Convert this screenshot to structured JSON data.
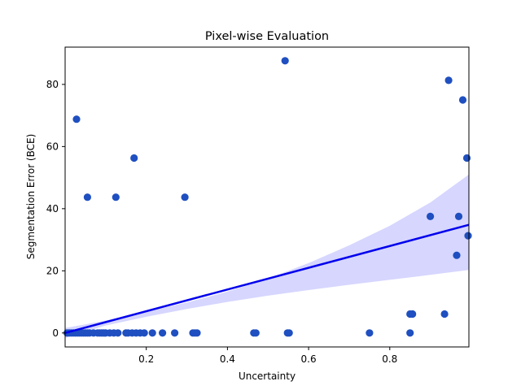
{
  "chart_data": {
    "type": "scatter",
    "title": "Pixel-wise Evaluation",
    "xlabel": "Uncertainty",
    "ylabel": "Segmentation Error (BCE)",
    "xlim": [
      0.0,
      0.995
    ],
    "ylim": [
      -4.5,
      92.0
    ],
    "xticks": [
      0.2,
      0.4,
      0.6,
      0.8
    ],
    "xtick_labels": [
      "0.2",
      "0.4",
      "0.6",
      "0.8"
    ],
    "yticks": [
      0,
      20,
      40,
      60,
      80
    ],
    "ytick_labels": [
      "0",
      "20",
      "40",
      "60",
      "80"
    ],
    "grid": false,
    "legend": "none",
    "point_color": "#1f4fc0",
    "line_color": "#0000ee",
    "band_color": "#d6d6ff",
    "points": [
      {
        "x": 0.005,
        "y": 0
      },
      {
        "x": 0.01,
        "y": 0
      },
      {
        "x": 0.015,
        "y": 0
      },
      {
        "x": 0.02,
        "y": 0
      },
      {
        "x": 0.025,
        "y": 0
      },
      {
        "x": 0.03,
        "y": 0
      },
      {
        "x": 0.035,
        "y": 0
      },
      {
        "x": 0.04,
        "y": 0
      },
      {
        "x": 0.045,
        "y": 0
      },
      {
        "x": 0.05,
        "y": 0
      },
      {
        "x": 0.055,
        "y": 0
      },
      {
        "x": 0.06,
        "y": 0
      },
      {
        "x": 0.07,
        "y": 0
      },
      {
        "x": 0.08,
        "y": 0
      },
      {
        "x": 0.085,
        "y": 0
      },
      {
        "x": 0.09,
        "y": 0
      },
      {
        "x": 0.095,
        "y": 0
      },
      {
        "x": 0.1,
        "y": 0
      },
      {
        "x": 0.11,
        "y": 0
      },
      {
        "x": 0.12,
        "y": 0
      },
      {
        "x": 0.13,
        "y": 0
      },
      {
        "x": 0.15,
        "y": 0
      },
      {
        "x": 0.155,
        "y": 0
      },
      {
        "x": 0.165,
        "y": 0
      },
      {
        "x": 0.175,
        "y": 0
      },
      {
        "x": 0.185,
        "y": 0
      },
      {
        "x": 0.195,
        "y": 0
      },
      {
        "x": 0.215,
        "y": 0
      },
      {
        "x": 0.24,
        "y": 0
      },
      {
        "x": 0.27,
        "y": 0
      },
      {
        "x": 0.315,
        "y": 0
      },
      {
        "x": 0.32,
        "y": 0
      },
      {
        "x": 0.325,
        "y": 0
      },
      {
        "x": 0.465,
        "y": 0
      },
      {
        "x": 0.47,
        "y": 0
      },
      {
        "x": 0.548,
        "y": 0
      },
      {
        "x": 0.552,
        "y": 0
      },
      {
        "x": 0.75,
        "y": 0
      },
      {
        "x": 0.85,
        "y": 0
      },
      {
        "x": 0.028,
        "y": 68.8
      },
      {
        "x": 0.055,
        "y": 43.7
      },
      {
        "x": 0.125,
        "y": 43.7
      },
      {
        "x": 0.17,
        "y": 56.3
      },
      {
        "x": 0.295,
        "y": 43.7
      },
      {
        "x": 0.542,
        "y": 87.6
      },
      {
        "x": 0.85,
        "y": 6.1
      },
      {
        "x": 0.856,
        "y": 6.1
      },
      {
        "x": 0.9,
        "y": 37.5
      },
      {
        "x": 0.935,
        "y": 6.1
      },
      {
        "x": 0.945,
        "y": 81.3
      },
      {
        "x": 0.965,
        "y": 25.0
      },
      {
        "x": 0.97,
        "y": 37.5
      },
      {
        "x": 0.98,
        "y": 75.0
      },
      {
        "x": 0.99,
        "y": 56.3
      },
      {
        "x": 0.993,
        "y": 31.3
      }
    ],
    "regression": {
      "x": [
        0.0,
        0.995
      ],
      "y": [
        0.0,
        34.8
      ],
      "band_x": [
        0.0,
        0.1,
        0.2,
        0.3,
        0.4,
        0.5,
        0.6,
        0.7,
        0.8,
        0.9,
        0.995
      ],
      "band_upper": [
        1.6,
        4.0,
        6.8,
        9.8,
        13.3,
        17.5,
        22.5,
        28.2,
        34.5,
        42.0,
        51.0
      ],
      "band_lower": [
        -1.6,
        2.4,
        5.2,
        7.7,
        10.0,
        12.0,
        13.8,
        15.5,
        17.1,
        18.7,
        20.3
      ]
    }
  }
}
